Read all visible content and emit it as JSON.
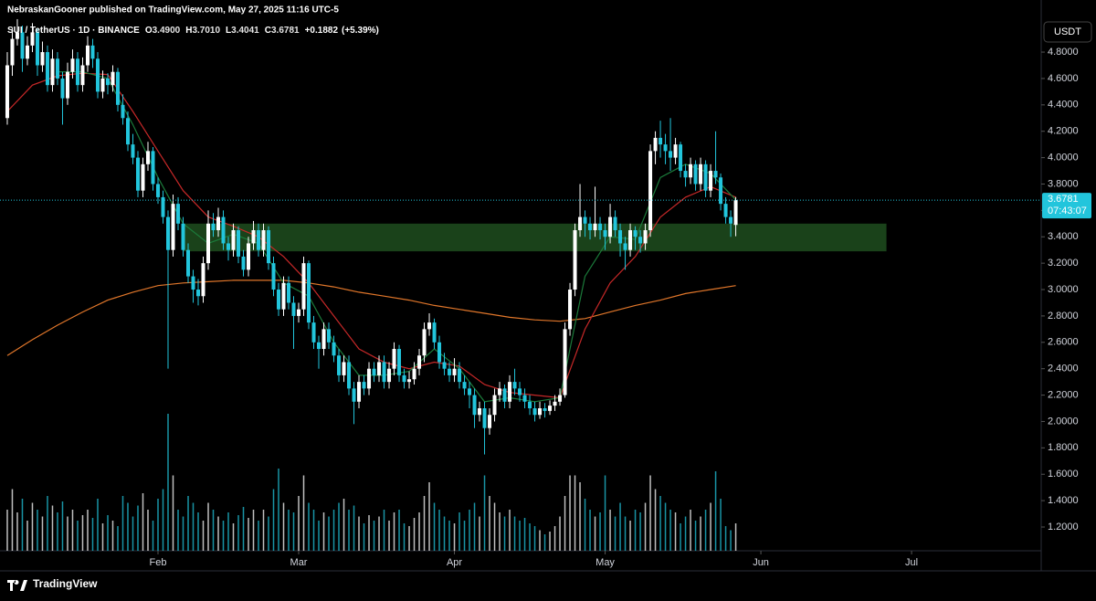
{
  "chart_data": {
    "type": "candlestick",
    "header": "NebraskanGooner published on TradingView.com, May 27, 2025 11:16 UTC-5",
    "symbol": "SUI / TetherUS · 1D · BINANCE",
    "ohlc_legend": [
      {
        "prefix": "O",
        "value": 3.49,
        "label": "3.4900"
      },
      {
        "prefix": "H",
        "value": 3.701,
        "label": "3.7010"
      },
      {
        "prefix": "L",
        "value": 3.4041,
        "label": "3.4041"
      },
      {
        "prefix": "C",
        "value": 3.6781,
        "label": "3.6781"
      }
    ],
    "change": {
      "value": 0.1882,
      "label": "+0.1882"
    },
    "change_pct": {
      "value": 5.39,
      "label": "(+5.39%)"
    },
    "currency": "USDT",
    "brand": "TradingView",
    "last_price": {
      "value": 3.6781,
      "label": "3.6781"
    },
    "countdown": "07:43:07",
    "up_color": "#ffffff",
    "down_color": "#22c5dc",
    "xlim": [
      -1.45,
      205.8
    ],
    "ylim": [
      1.02,
      5.195
    ],
    "xticks": [
      {
        "value": 30,
        "label": "Feb"
      },
      {
        "value": 58,
        "label": "Mar"
      },
      {
        "value": 89,
        "label": "Apr"
      },
      {
        "value": 119,
        "label": "May"
      },
      {
        "value": 150,
        "label": "Jun"
      },
      {
        "value": 180,
        "label": "Jul"
      }
    ],
    "yticks": [
      {
        "value": 1.2,
        "label": "1.2000"
      },
      {
        "value": 1.4,
        "label": "1.4000"
      },
      {
        "value": 1.6,
        "label": "1.6000"
      },
      {
        "value": 1.8,
        "label": "1.8000"
      },
      {
        "value": 2,
        "label": "2.0000"
      },
      {
        "value": 2.2,
        "label": "2.2000"
      },
      {
        "value": 2.4,
        "label": "2.4000"
      },
      {
        "value": 2.6,
        "label": "2.6000"
      },
      {
        "value": 2.8,
        "label": "2.8000"
      },
      {
        "value": 3,
        "label": "3.0000"
      },
      {
        "value": 3.2,
        "label": "3.2000"
      },
      {
        "value": 3.4,
        "label": "3.4000"
      },
      {
        "value": 3.6,
        "label": "3.6000"
      },
      {
        "value": 3.8,
        "label": "3.8000"
      },
      {
        "value": 4,
        "label": "4.0000"
      },
      {
        "value": 4.2,
        "label": "4.2000"
      },
      {
        "value": 4.4,
        "label": "4.4000"
      },
      {
        "value": 4.6,
        "label": "4.6000"
      },
      {
        "value": 4.8,
        "label": "4.8000"
      }
    ],
    "zone": {
      "color": "#1f4d1f",
      "x": [
        35,
        175
      ],
      "y": [
        3.29,
        3.5
      ]
    },
    "candles": [
      [
        4.3,
        4.8,
        4.25,
        4.7
      ],
      [
        4.7,
        4.98,
        4.62,
        4.9
      ],
      [
        4.9,
        5.05,
        4.85,
        4.95
      ],
      [
        4.95,
        5.0,
        4.65,
        4.75
      ],
      [
        4.75,
        4.92,
        4.7,
        4.85
      ],
      [
        4.85,
        5.02,
        4.8,
        4.95
      ],
      [
        4.95,
        4.98,
        4.62,
        4.7
      ],
      [
        4.7,
        4.88,
        4.65,
        4.8
      ],
      [
        4.8,
        4.85,
        4.5,
        4.55
      ],
      [
        4.55,
        4.82,
        4.5,
        4.75
      ],
      [
        4.75,
        4.8,
        4.55,
        4.6
      ],
      [
        4.6,
        4.65,
        4.25,
        4.45
      ],
      [
        4.45,
        4.72,
        4.4,
        4.65
      ],
      [
        4.65,
        4.82,
        4.6,
        4.75
      ],
      [
        4.75,
        4.8,
        4.5,
        4.55
      ],
      [
        4.55,
        4.76,
        4.5,
        4.7
      ],
      [
        4.7,
        4.92,
        4.65,
        4.85
      ],
      [
        4.85,
        4.9,
        4.68,
        4.75
      ],
      [
        4.75,
        4.8,
        4.45,
        4.5
      ],
      [
        4.5,
        4.66,
        4.45,
        4.6
      ],
      [
        4.6,
        4.64,
        4.48,
        4.55
      ],
      [
        4.55,
        4.7,
        4.5,
        4.65
      ],
      [
        4.65,
        4.68,
        4.35,
        4.4
      ],
      [
        4.4,
        4.48,
        4.25,
        4.3
      ],
      [
        4.3,
        4.35,
        4.05,
        4.1
      ],
      [
        4.1,
        4.18,
        3.95,
        4.0
      ],
      [
        4.0,
        4.05,
        3.7,
        3.75
      ],
      [
        3.75,
        4.0,
        3.7,
        3.95
      ],
      [
        3.95,
        4.12,
        3.9,
        4.05
      ],
      [
        4.05,
        4.08,
        3.75,
        3.8
      ],
      [
        3.8,
        3.85,
        3.65,
        3.7
      ],
      [
        3.7,
        3.75,
        3.5,
        3.55
      ],
      [
        3.55,
        3.6,
        2.4,
        3.3
      ],
      [
        3.3,
        3.72,
        3.25,
        3.65
      ],
      [
        3.65,
        3.7,
        3.45,
        3.5
      ],
      [
        3.5,
        3.55,
        3.25,
        3.3
      ],
      [
        3.3,
        3.35,
        3.05,
        3.1
      ],
      [
        3.1,
        3.15,
        2.9,
        3.0
      ],
      [
        3.0,
        3.08,
        2.88,
        2.95
      ],
      [
        2.95,
        3.25,
        2.9,
        3.2
      ],
      [
        3.2,
        3.6,
        3.15,
        3.5
      ],
      [
        3.5,
        3.58,
        3.4,
        3.45
      ],
      [
        3.45,
        3.62,
        3.4,
        3.55
      ],
      [
        3.55,
        3.6,
        3.3,
        3.35
      ],
      [
        3.35,
        3.4,
        3.22,
        3.3
      ],
      [
        3.3,
        3.5,
        3.25,
        3.45
      ],
      [
        3.45,
        3.48,
        3.2,
        3.25
      ],
      [
        3.25,
        3.3,
        3.1,
        3.15
      ],
      [
        3.15,
        3.4,
        3.1,
        3.35
      ],
      [
        3.35,
        3.52,
        3.3,
        3.45
      ],
      [
        3.45,
        3.5,
        3.25,
        3.3
      ],
      [
        3.3,
        3.5,
        3.25,
        3.45
      ],
      [
        3.45,
        3.48,
        3.15,
        3.2
      ],
      [
        3.2,
        3.25,
        2.95,
        3.0
      ],
      [
        3.0,
        3.05,
        2.8,
        2.85
      ],
      [
        2.85,
        3.1,
        2.8,
        3.05
      ],
      [
        3.05,
        3.1,
        2.85,
        2.9
      ],
      [
        2.9,
        2.95,
        2.55,
        2.8
      ],
      [
        2.8,
        2.9,
        2.75,
        2.85
      ],
      [
        2.85,
        3.25,
        2.8,
        3.2
      ],
      [
        3.2,
        3.22,
        2.7,
        2.75
      ],
      [
        2.75,
        2.8,
        2.55,
        2.6
      ],
      [
        2.6,
        2.65,
        2.4,
        2.55
      ],
      [
        2.55,
        2.75,
        2.5,
        2.7
      ],
      [
        2.7,
        2.75,
        2.55,
        2.6
      ],
      [
        2.6,
        2.65,
        2.45,
        2.5
      ],
      [
        2.5,
        2.55,
        2.3,
        2.35
      ],
      [
        2.35,
        2.5,
        2.3,
        2.45
      ],
      [
        2.45,
        2.5,
        2.2,
        2.25
      ],
      [
        2.25,
        2.3,
        1.98,
        2.15
      ],
      [
        2.15,
        2.35,
        2.1,
        2.3
      ],
      [
        2.3,
        2.35,
        2.2,
        2.25
      ],
      [
        2.25,
        2.45,
        2.2,
        2.4
      ],
      [
        2.4,
        2.45,
        2.3,
        2.35
      ],
      [
        2.35,
        2.5,
        2.3,
        2.45
      ],
      [
        2.45,
        2.5,
        2.25,
        2.3
      ],
      [
        2.3,
        2.45,
        2.25,
        2.4
      ],
      [
        2.4,
        2.6,
        2.35,
        2.55
      ],
      [
        2.55,
        2.58,
        2.3,
        2.35
      ],
      [
        2.35,
        2.4,
        2.25,
        2.3
      ],
      [
        2.3,
        2.38,
        2.25,
        2.32
      ],
      [
        2.32,
        2.45,
        2.28,
        2.4
      ],
      [
        2.4,
        2.55,
        2.35,
        2.5
      ],
      [
        2.5,
        2.75,
        2.45,
        2.7
      ],
      [
        2.7,
        2.82,
        2.65,
        2.75
      ],
      [
        2.75,
        2.78,
        2.55,
        2.6
      ],
      [
        2.6,
        2.65,
        2.4,
        2.45
      ],
      [
        2.45,
        2.52,
        2.35,
        2.4
      ],
      [
        2.4,
        2.45,
        2.3,
        2.35
      ],
      [
        2.35,
        2.48,
        2.3,
        2.4
      ],
      [
        2.4,
        2.45,
        2.25,
        2.3
      ],
      [
        2.3,
        2.35,
        2.2,
        2.25
      ],
      [
        2.25,
        2.3,
        2.1,
        2.2
      ],
      [
        2.2,
        2.25,
        1.95,
        2.05
      ],
      [
        2.05,
        2.15,
        2.0,
        2.1
      ],
      [
        2.1,
        2.15,
        1.75,
        1.95
      ],
      [
        1.95,
        2.1,
        1.9,
        2.05
      ],
      [
        2.05,
        2.25,
        2.0,
        2.2
      ],
      [
        2.2,
        2.3,
        2.15,
        2.25
      ],
      [
        2.25,
        2.28,
        2.1,
        2.15
      ],
      [
        2.15,
        2.35,
        2.1,
        2.3
      ],
      [
        2.3,
        2.4,
        2.2,
        2.25
      ],
      [
        2.25,
        2.3,
        2.15,
        2.2
      ],
      [
        2.2,
        2.25,
        2.1,
        2.15
      ],
      [
        2.15,
        2.2,
        2.05,
        2.1
      ],
      [
        2.1,
        2.15,
        2.0,
        2.05
      ],
      [
        2.05,
        2.15,
        2.02,
        2.1
      ],
      [
        2.1,
        2.14,
        2.03,
        2.08
      ],
      [
        2.08,
        2.16,
        2.05,
        2.12
      ],
      [
        2.12,
        2.2,
        2.08,
        2.15
      ],
      [
        2.15,
        2.25,
        2.12,
        2.2
      ],
      [
        2.2,
        2.75,
        2.18,
        2.7
      ],
      [
        2.7,
        3.05,
        2.65,
        3.0
      ],
      [
        3.0,
        3.5,
        2.95,
        3.45
      ],
      [
        3.45,
        3.8,
        3.4,
        3.55
      ],
      [
        3.55,
        3.6,
        3.4,
        3.5
      ],
      [
        3.5,
        3.55,
        3.38,
        3.45
      ],
      [
        3.45,
        3.78,
        3.4,
        3.5
      ],
      [
        3.5,
        3.55,
        3.38,
        3.45
      ],
      [
        3.45,
        3.5,
        3.3,
        3.4
      ],
      [
        3.4,
        3.65,
        3.35,
        3.55
      ],
      [
        3.55,
        3.6,
        3.4,
        3.45
      ],
      [
        3.45,
        3.5,
        3.25,
        3.35
      ],
      [
        3.35,
        3.4,
        3.15,
        3.3
      ],
      [
        3.3,
        3.5,
        3.25,
        3.45
      ],
      [
        3.45,
        3.48,
        3.3,
        3.4
      ],
      [
        3.4,
        3.45,
        3.28,
        3.35
      ],
      [
        3.35,
        3.5,
        3.3,
        3.45
      ],
      [
        3.45,
        4.1,
        3.4,
        4.05
      ],
      [
        4.05,
        4.2,
        3.95,
        4.15
      ],
      [
        4.15,
        4.28,
        4.0,
        4.1
      ],
      [
        4.1,
        4.18,
        3.95,
        4.05
      ],
      [
        4.05,
        4.3,
        3.9,
        4.0
      ],
      [
        4.0,
        4.15,
        3.95,
        4.1
      ],
      [
        4.1,
        4.12,
        3.85,
        3.9
      ],
      [
        3.9,
        3.95,
        3.78,
        3.85
      ],
      [
        3.85,
        4.0,
        3.8,
        3.95
      ],
      [
        3.95,
        3.98,
        3.75,
        3.8
      ],
      [
        3.8,
        4.0,
        3.75,
        3.95
      ],
      [
        3.95,
        3.98,
        3.7,
        3.75
      ],
      [
        3.75,
        3.95,
        3.7,
        3.9
      ],
      [
        3.9,
        4.2,
        3.8,
        3.85
      ],
      [
        3.85,
        3.88,
        3.6,
        3.65
      ],
      [
        3.65,
        3.7,
        3.5,
        3.55
      ],
      [
        3.55,
        3.6,
        3.4,
        3.5
      ],
      [
        3.49,
        3.701,
        3.4041,
        3.6781
      ]
    ],
    "volume_lim": [
      0,
      100
    ],
    "volume": [
      30,
      45,
      28,
      38,
      22,
      35,
      30,
      25,
      40,
      33,
      28,
      36,
      25,
      30,
      22,
      26,
      30,
      24,
      38,
      20,
      26,
      22,
      18,
      40,
      35,
      25,
      33,
      42,
      30,
      22,
      38,
      45,
      100,
      55,
      30,
      25,
      40,
      35,
      28,
      22,
      35,
      30,
      25,
      22,
      28,
      20,
      26,
      32,
      24,
      30,
      22,
      30,
      25,
      45,
      60,
      35,
      30,
      28,
      40,
      55,
      35,
      30,
      22,
      28,
      25,
      30,
      35,
      38,
      30,
      33,
      25,
      20,
      26,
      22,
      25,
      30,
      22,
      28,
      30,
      20,
      18,
      24,
      28,
      40,
      50,
      35,
      30,
      25,
      22,
      20,
      28,
      22,
      30,
      35,
      25,
      55,
      40,
      35,
      28,
      25,
      30,
      25,
      22,
      24,
      20,
      18,
      15,
      12,
      14,
      18,
      25,
      40,
      55,
      55,
      50,
      38,
      30,
      25,
      28,
      55,
      30,
      25,
      35,
      25,
      22,
      30,
      28,
      35,
      55,
      45,
      40,
      35,
      30,
      28,
      20,
      25,
      30,
      22,
      25,
      30,
      35,
      58,
      38,
      18,
      15,
      20
    ],
    "ma": [
      {
        "color": "#e0762a",
        "x": [
          0,
          5,
          10,
          15,
          20,
          25,
          30,
          35,
          40,
          45,
          50,
          55,
          60,
          65,
          70,
          75,
          80,
          85,
          90,
          95,
          100,
          105,
          110,
          115,
          120,
          125,
          130,
          135,
          140,
          145
        ],
        "values": [
          2.5,
          2.62,
          2.73,
          2.83,
          2.92,
          2.98,
          3.03,
          3.05,
          3.06,
          3.07,
          3.07,
          3.07,
          3.05,
          3.02,
          2.98,
          2.95,
          2.92,
          2.88,
          2.85,
          2.82,
          2.79,
          2.77,
          2.76,
          2.78,
          2.83,
          2.88,
          2.92,
          2.97,
          3.0,
          3.03
        ]
      },
      {
        "color": "#c62828",
        "x": [
          0,
          5,
          10,
          15,
          20,
          25,
          30,
          35,
          40,
          45,
          50,
          55,
          60,
          65,
          70,
          75,
          80,
          85,
          90,
          95,
          100,
          105,
          110,
          115,
          120,
          125,
          130,
          135,
          140,
          145
        ],
        "values": [
          4.35,
          4.55,
          4.62,
          4.64,
          4.63,
          4.35,
          4.05,
          3.75,
          3.55,
          3.48,
          3.4,
          3.25,
          3.05,
          2.8,
          2.55,
          2.45,
          2.4,
          2.45,
          2.42,
          2.28,
          2.22,
          2.2,
          2.18,
          2.7,
          3.05,
          3.25,
          3.55,
          3.7,
          3.78,
          3.7
        ]
      },
      {
        "color": "#1b7a3a",
        "x": [
          10,
          15,
          20,
          25,
          30,
          35,
          40,
          45,
          50,
          55,
          60,
          65,
          70,
          75,
          80,
          85,
          90,
          95,
          100,
          105,
          110,
          115,
          120,
          125,
          130,
          135,
          140,
          145
        ],
        "values": [
          4.65,
          4.65,
          4.6,
          4.25,
          3.85,
          3.5,
          3.35,
          3.42,
          3.35,
          3.05,
          2.95,
          2.6,
          2.35,
          2.35,
          2.38,
          2.55,
          2.4,
          2.15,
          2.18,
          2.15,
          2.18,
          3.1,
          3.4,
          3.38,
          3.85,
          3.95,
          3.88,
          3.68
        ]
      }
    ]
  }
}
